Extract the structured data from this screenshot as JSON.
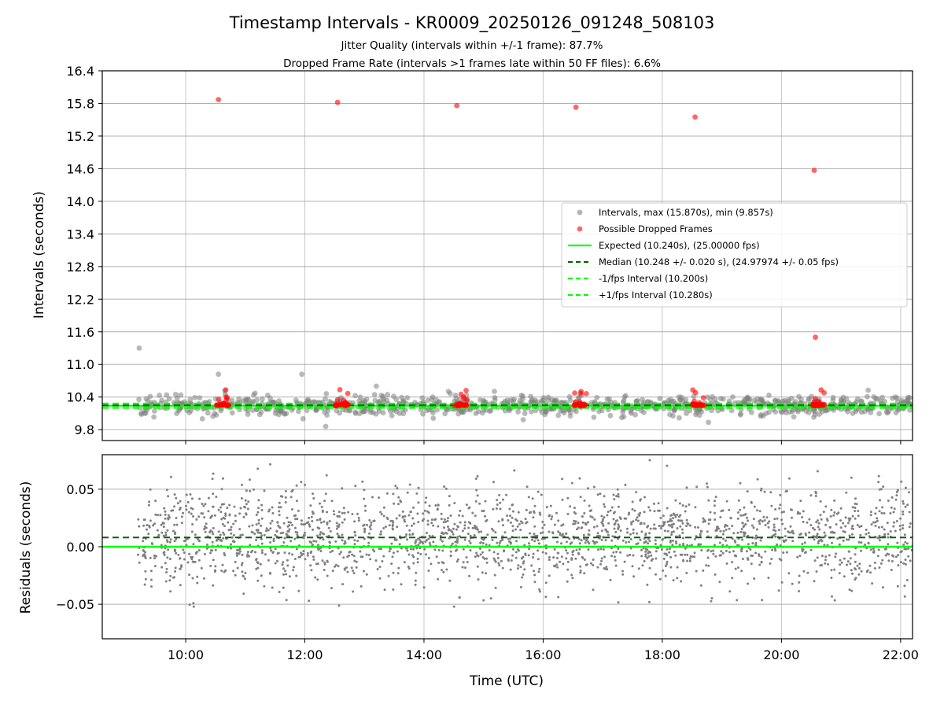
{
  "chart_data": {
    "title": "Timestamp Intervals - KR0009_20250126_091248_508103",
    "subtitle_1": "Jitter Quality (intervals within +/-1 frame): 87.7%",
    "subtitle_2": "Dropped Frame Rate (intervals >1 frames late within 50 FF files): 6.6%",
    "x_axis": {
      "label": "Time (UTC)",
      "range_hours": [
        8.6,
        22.2
      ],
      "ticks": [
        {
          "value": 10,
          "label": "10:00"
        },
        {
          "value": 12,
          "label": "12:00"
        },
        {
          "value": 14,
          "label": "14:00"
        },
        {
          "value": 16,
          "label": "16:00"
        },
        {
          "value": 18,
          "label": "18:00"
        },
        {
          "value": 20,
          "label": "20:00"
        },
        {
          "value": 22,
          "label": "22:00"
        }
      ],
      "grid": true
    },
    "top_panel": {
      "type": "scatter",
      "ylabel": "Intervals (seconds)",
      "ylim": [
        9.6,
        16.4
      ],
      "yticks": [
        "16.4",
        "15.8",
        "15.2",
        "14.6",
        "14.0",
        "13.4",
        "12.8",
        "12.2",
        "11.6",
        "11.0",
        "10.4",
        "9.8"
      ],
      "ytick_values": [
        16.4,
        15.8,
        15.2,
        14.6,
        14.0,
        13.4,
        12.8,
        12.2,
        11.6,
        11.0,
        10.4,
        9.8
      ],
      "grid": true,
      "legend_position": "center-right",
      "legend": [
        {
          "label": "Intervals, max (15.870s), min (9.857s)",
          "kind": "marker",
          "color": "#808080"
        },
        {
          "label": "Possible Dropped Frames",
          "kind": "marker",
          "color": "#ff0000"
        },
        {
          "label": "Expected (10.240s), (25.00000 fps)",
          "kind": "solid",
          "color": "#00ff00"
        },
        {
          "label": "Median (10.248 +/- 0.020 s), (24.97974 +/- 0.05 fps)",
          "kind": "dashed",
          "color": "#006400"
        },
        {
          "label": "-1/fps Interval (10.200s)",
          "kind": "dashed",
          "color": "#00ff00"
        },
        {
          "label": "+1/fps Interval (10.280s)",
          "kind": "dashed",
          "color": "#00ff00"
        }
      ],
      "lines": {
        "expected": 10.24,
        "median": 10.248,
        "minus_1fps": 10.2,
        "plus_1fps": 10.28
      },
      "outlier_points": [
        {
          "x": 9.22,
          "y": 11.3
        },
        {
          "x": 10.55,
          "y": 10.82
        },
        {
          "x": 11.95,
          "y": 10.82
        },
        {
          "x": 13.2,
          "y": 10.6
        },
        {
          "x": 12.35,
          "y": 9.86
        }
      ],
      "dropped_frames": [
        {
          "x": 10.55,
          "y": 15.87
        },
        {
          "x": 12.55,
          "y": 15.82
        },
        {
          "x": 14.55,
          "y": 15.76
        },
        {
          "x": 16.55,
          "y": 15.73
        },
        {
          "x": 18.55,
          "y": 15.55
        },
        {
          "x": 20.55,
          "y": 14.57
        },
        {
          "x": 20.57,
          "y": 11.5
        }
      ],
      "dropped_clusters_x": [
        10.62,
        12.62,
        14.62,
        16.62,
        18.62,
        20.62
      ]
    },
    "bottom_panel": {
      "type": "scatter",
      "ylabel": "Residuals (seconds)",
      "ylim": [
        -0.08,
        0.08
      ],
      "yticks": [
        "0.05",
        "0.00",
        "−0.05"
      ],
      "ytick_values": [
        0.05,
        0.0,
        -0.05
      ],
      "grid": true,
      "lines": {
        "expected_residual": 0.0,
        "median_residual": 0.008
      },
      "point_color": "#808080"
    },
    "colors": {
      "interval_points": "#808080",
      "dropped_points": "#ff0000",
      "expected_line": "#00ff00",
      "median_line": "#006400",
      "grid": "#b0b0b0"
    }
  }
}
